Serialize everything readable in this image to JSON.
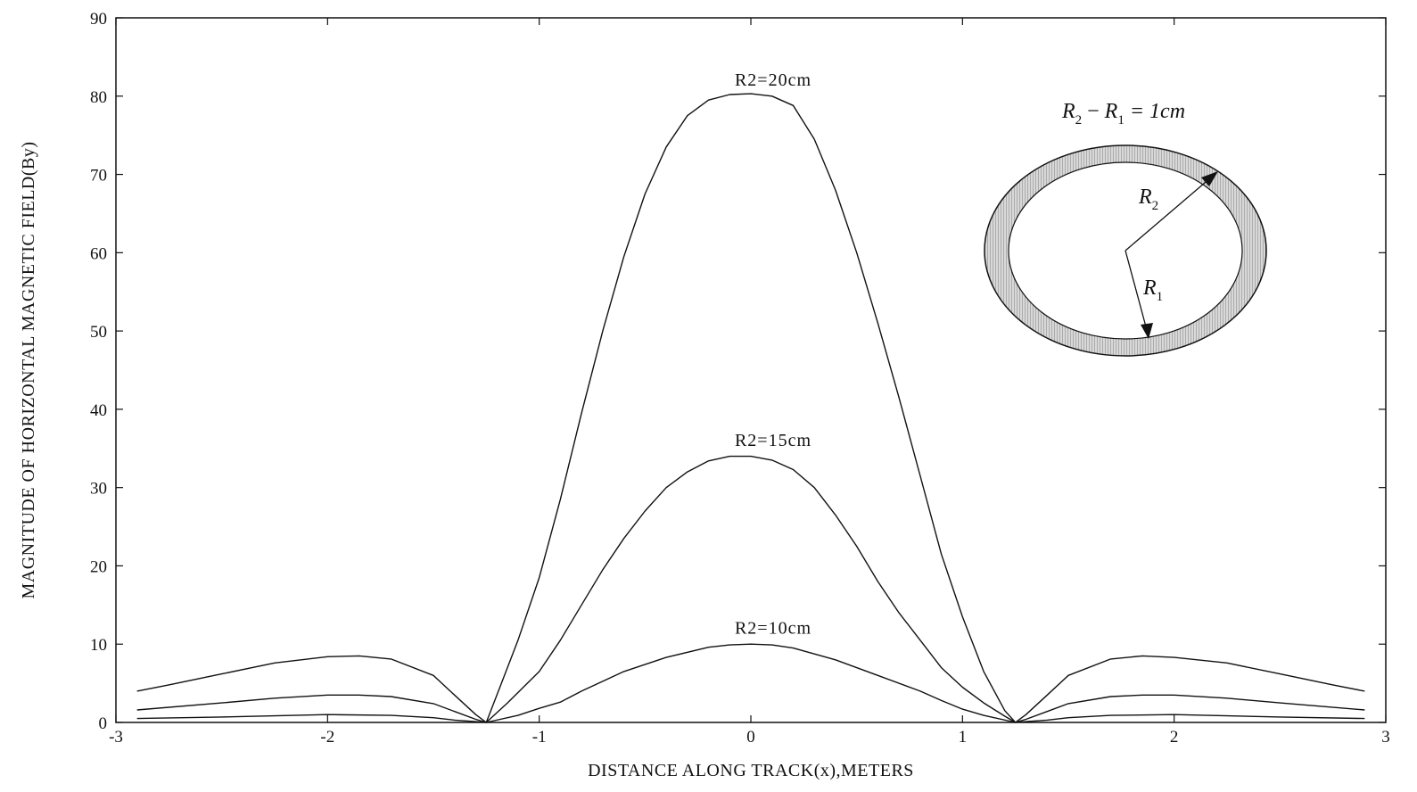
{
  "chart_data": {
    "type": "line",
    "title": "",
    "xlabel": "DISTANCE ALONG TRACK(x),METERS",
    "ylabel": "MAGNITUDE OF HORIZONTAL MAGNETIC FIELD(By)",
    "xlim": [
      -3,
      3
    ],
    "ylim": [
      0,
      90
    ],
    "xticks": [
      -3,
      -2,
      -1,
      0,
      1,
      2,
      3
    ],
    "yticks": [
      0,
      10,
      20,
      30,
      40,
      50,
      60,
      70,
      80,
      90
    ],
    "grid": false,
    "legend": "none",
    "series": [
      {
        "name": "R2=20cm",
        "x": [
          -2.9,
          -2.75,
          -2.5,
          -2.25,
          -2.0,
          -1.85,
          -1.7,
          -1.5,
          -1.4,
          -1.3,
          -1.25,
          -1.2,
          -1.1,
          -1.0,
          -0.9,
          -0.8,
          -0.7,
          -0.6,
          -0.5,
          -0.4,
          -0.3,
          -0.2,
          -0.1,
          0.0,
          0.1,
          0.2,
          0.3,
          0.4,
          0.5,
          0.6,
          0.7,
          0.8,
          0.9,
          1.0,
          1.1,
          1.2,
          1.25,
          1.3,
          1.4,
          1.5,
          1.7,
          1.85,
          2.0,
          2.25,
          2.5,
          2.75,
          2.9
        ],
        "values": [
          4.0,
          4.8,
          6.2,
          7.6,
          8.4,
          8.5,
          8.1,
          6.0,
          3.5,
          1.0,
          0.0,
          3.5,
          10.5,
          18.5,
          28.5,
          39.5,
          50.0,
          59.5,
          67.5,
          73.5,
          77.5,
          79.5,
          80.2,
          80.3,
          80.0,
          78.8,
          74.5,
          68.0,
          60.0,
          51.0,
          41.5,
          31.5,
          21.5,
          13.5,
          6.5,
          1.5,
          0.0,
          1.0,
          3.5,
          6.0,
          8.1,
          8.5,
          8.3,
          7.6,
          6.2,
          4.8,
          4.0
        ]
      },
      {
        "name": "R2=15cm",
        "x": [
          -2.9,
          -2.5,
          -2.25,
          -2.0,
          -1.85,
          -1.7,
          -1.5,
          -1.4,
          -1.3,
          -1.25,
          -1.15,
          -1.0,
          -0.9,
          -0.8,
          -0.7,
          -0.6,
          -0.5,
          -0.4,
          -0.3,
          -0.2,
          -0.1,
          0.0,
          0.1,
          0.2,
          0.3,
          0.4,
          0.5,
          0.6,
          0.7,
          0.8,
          0.9,
          1.0,
          1.1,
          1.2,
          1.25,
          1.3,
          1.4,
          1.5,
          1.7,
          1.85,
          2.0,
          2.25,
          2.5,
          2.9
        ],
        "values": [
          1.6,
          2.5,
          3.1,
          3.5,
          3.5,
          3.3,
          2.4,
          1.4,
          0.4,
          0.0,
          2.5,
          6.5,
          10.5,
          15.0,
          19.5,
          23.5,
          27.0,
          30.0,
          32.0,
          33.4,
          34.0,
          34.0,
          33.5,
          32.3,
          30.0,
          26.5,
          22.5,
          18.0,
          14.0,
          10.5,
          7.0,
          4.5,
          2.5,
          0.8,
          0.0,
          0.4,
          1.4,
          2.4,
          3.3,
          3.5,
          3.5,
          3.1,
          2.5,
          1.6
        ]
      },
      {
        "name": "R2=10cm",
        "x": [
          -2.9,
          -2.5,
          -2.0,
          -1.7,
          -1.5,
          -1.4,
          -1.3,
          -1.25,
          -1.1,
          -1.0,
          -0.9,
          -0.8,
          -0.6,
          -0.4,
          -0.2,
          -0.1,
          0.0,
          0.1,
          0.2,
          0.4,
          0.6,
          0.8,
          0.9,
          1.0,
          1.1,
          1.25,
          1.3,
          1.4,
          1.5,
          1.7,
          2.0,
          2.5,
          2.9
        ],
        "values": [
          0.5,
          0.7,
          1.0,
          0.9,
          0.6,
          0.3,
          0.1,
          0.0,
          0.9,
          1.8,
          2.6,
          4.0,
          6.5,
          8.3,
          9.6,
          9.9,
          10.0,
          9.9,
          9.5,
          8.0,
          6.0,
          4.0,
          2.8,
          1.7,
          0.9,
          0.0,
          0.1,
          0.3,
          0.6,
          0.9,
          1.0,
          0.7,
          0.5
        ]
      }
    ],
    "annotations": [
      {
        "text": "R2=20cm",
        "x": 0.0,
        "y": 82
      },
      {
        "text": "R2=15cm",
        "x": 0.0,
        "y": 36
      },
      {
        "text": "R2=10cm",
        "x": 0.0,
        "y": 12
      }
    ],
    "inset": {
      "title_parts": {
        "r2": "R",
        "r2_sub": "2",
        "minus": " − ",
        "r1": "R",
        "r1_sub": "1",
        "eq": " = 1cm"
      },
      "outer_label": {
        "r": "R",
        "sub": "2"
      },
      "inner_label": {
        "r": "R",
        "sub": "1"
      }
    }
  }
}
